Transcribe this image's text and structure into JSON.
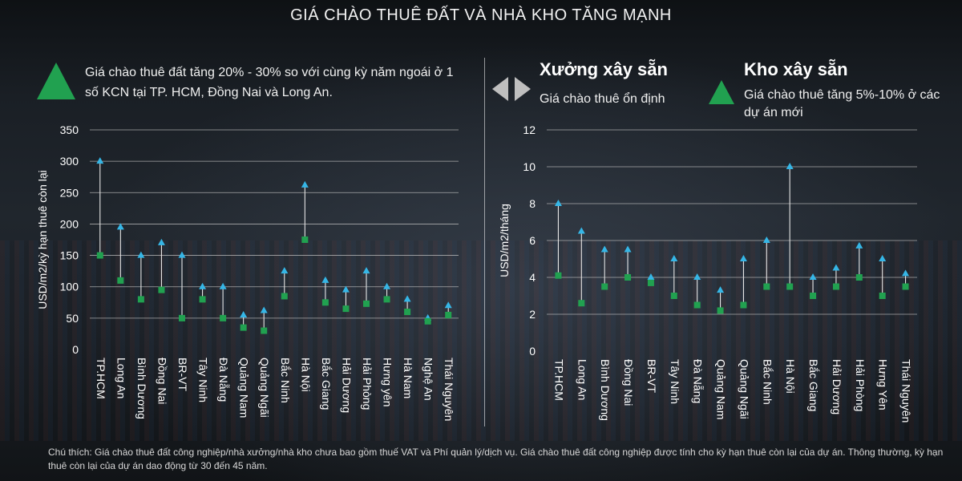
{
  "title": "GIÁ CHÀO THUÊ ĐẤT VÀ NHÀ KHO TĂNG MẠNH",
  "left_annotation": "Giá chào thuê đất tăng 20% - 30% so với cùng kỳ năm ngoái ở 1 số KCN tại TP. HCM, Đồng Nai và Long An.",
  "right_flat_title": "Xưởng xây sẵn",
  "right_flat_sub": "Giá chào thuê ổn định",
  "right_up_title": "Kho xây sẵn",
  "right_up_sub": "Giá chào thuê tăng 5%-10% ở các dự án mới",
  "footnote": "Chú thích: Giá chào thuê đất công nghiệp/nhà xưởng/nhà kho chưa bao gồm thuế VAT và Phí quản lý/dịch vụ. Giá chào thuê đất công nghiệp được tính cho kỳ hạn thuê còn lại của dự án. Thông thường, kỳ hạn thuê còn lại của dự án dao động từ 30 đến 45 năm.",
  "colors": {
    "high": "#35b6e6",
    "low": "#21a150",
    "stem": "#e6e6e6",
    "grid": "#bfbfbf"
  },
  "chart_data": [
    {
      "type": "range",
      "ylabel": "USD/m2/kỳ hạn thuê còn lại",
      "ylim": [
        0,
        350
      ],
      "yticks": [
        0,
        50,
        100,
        150,
        200,
        250,
        300,
        350
      ],
      "categories": [
        "TP.HCM",
        "Long An",
        "Bình Dương",
        "Đồng Nai",
        "BR-VT",
        "Tây Ninh",
        "Đà Nẵng",
        "Quảng Nam",
        "Quảng Ngãi",
        "Bắc Ninh",
        "Hà Nội",
        "Bắc Giang",
        "Hải Dương",
        "Hải Phòng",
        "Hưng yên",
        "Hà Nam",
        "Nghệ An",
        "Thái Nguyên"
      ],
      "high": [
        300,
        195,
        150,
        170,
        150,
        100,
        100,
        55,
        62,
        125,
        262,
        110,
        95,
        125,
        100,
        80,
        50,
        70
      ],
      "low": [
        150,
        110,
        80,
        95,
        50,
        80,
        50,
        35,
        30,
        85,
        175,
        75,
        65,
        73,
        80,
        60,
        45,
        55
      ]
    },
    {
      "type": "range",
      "ylabel": "USD/m2/tháng",
      "ylim": [
        0,
        12
      ],
      "yticks": [
        0,
        2,
        4,
        6,
        8,
        10,
        12
      ],
      "categories": [
        "TP.HCM",
        "Long An",
        "Bình Dương",
        "Đồng Nai",
        "BR-VT",
        "Tây Ninh",
        "Đà Nẵng",
        "Quảng Nam",
        "Quảng Ngãi",
        "Bắc Ninh",
        "Hà Nội",
        "Bắc Giang",
        "Hải Dương",
        "Hải Phòng",
        "Hưng Yên",
        "Thái Nguyên"
      ],
      "high": [
        8,
        6.5,
        5.5,
        5.5,
        4,
        5,
        4,
        3.3,
        5,
        6,
        10,
        4,
        4.5,
        5.7,
        5,
        4.2
      ],
      "low": [
        4.1,
        2.6,
        3.5,
        4,
        3.7,
        3,
        2.5,
        2.2,
        2.5,
        3.5,
        3.5,
        3,
        3.5,
        4,
        3,
        3.5
      ]
    }
  ]
}
